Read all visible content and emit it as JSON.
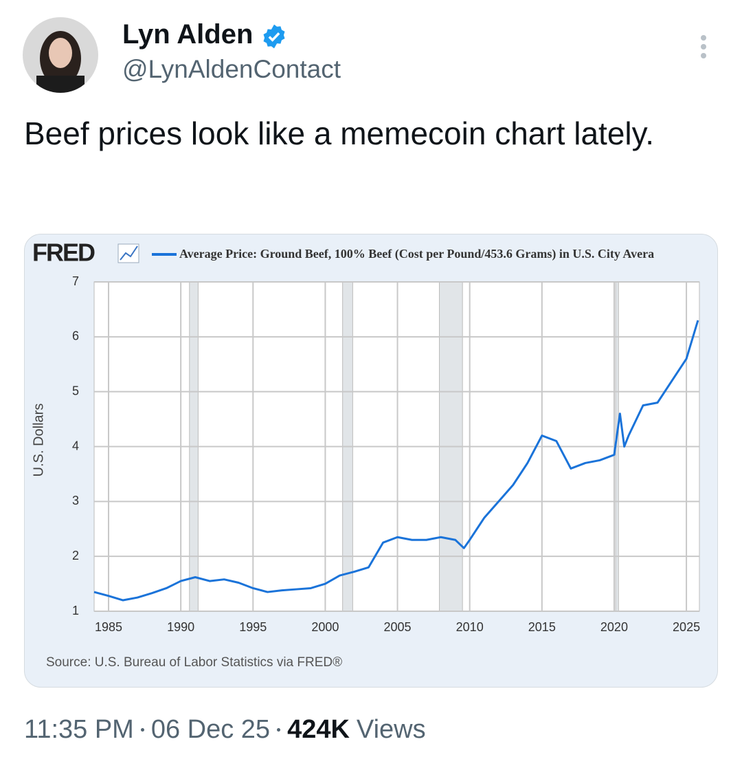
{
  "tweet": {
    "name": "Lyn Alden",
    "handle": "@LynAldenContact",
    "text": "Beef prices look like a memecoin chart lately.",
    "time": "11:35 PM",
    "date": "06 Dec 25",
    "views_count": "424K",
    "views_label": "Views"
  },
  "chart_data": {
    "type": "line",
    "logo": "FRED",
    "source": "Source: U.S. Bureau of Labor Statistics via FRED®",
    "ylabel": "U.S. Dollars",
    "x": [
      1984,
      1985,
      1986,
      1987,
      1988,
      1989,
      1990,
      1991,
      1992,
      1993,
      1994,
      1995,
      1996,
      1997,
      1998,
      1999,
      2000,
      2001,
      2002,
      2003,
      2004,
      2005,
      2006,
      2007,
      2008,
      2009,
      2009.6,
      2010,
      2011,
      2012,
      2013,
      2014,
      2015,
      2016,
      2017,
      2018,
      2019,
      2020,
      2020.4,
      2020.7,
      2021,
      2022,
      2023,
      2024,
      2025,
      2025.8
    ],
    "series": [
      {
        "name": "Average Price: Ground Beef, 100% Beef (Cost per Pound/453.6 Grams) in U.S. City Avera",
        "color": "#1a73d9",
        "values": [
          1.35,
          1.28,
          1.2,
          1.25,
          1.33,
          1.42,
          1.55,
          1.62,
          1.55,
          1.58,
          1.52,
          1.42,
          1.35,
          1.38,
          1.4,
          1.42,
          1.5,
          1.65,
          1.72,
          1.8,
          2.25,
          2.35,
          2.3,
          2.3,
          2.35,
          2.3,
          2.15,
          2.3,
          2.7,
          3.0,
          3.3,
          3.7,
          4.2,
          4.1,
          3.6,
          3.7,
          3.75,
          3.85,
          4.6,
          4.0,
          4.2,
          4.75,
          4.8,
          5.2,
          5.6,
          6.3
        ]
      }
    ],
    "recessions": [
      [
        1990.6,
        1991.2
      ],
      [
        2001.2,
        2001.9
      ],
      [
        2007.9,
        2009.5
      ],
      [
        2020.1,
        2020.3
      ]
    ],
    "xlim": [
      1984,
      2025.9
    ],
    "ylim": [
      1,
      7
    ],
    "xticks": [
      1985,
      1990,
      1995,
      2000,
      2005,
      2010,
      2015,
      2020,
      2025
    ],
    "yticks": [
      1,
      2,
      3,
      4,
      5,
      6,
      7
    ],
    "grid": true
  }
}
